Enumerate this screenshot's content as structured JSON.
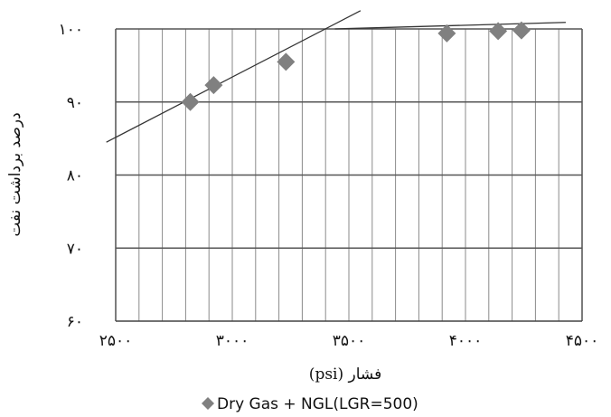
{
  "chart_data": {
    "type": "scatter",
    "xlabel": "فشار (psi)",
    "ylabel": "درصد برداشت نفت",
    "xlim": [
      2500,
      4500
    ],
    "ylim": [
      60,
      100
    ],
    "x_ticks": [
      2500,
      3000,
      3500,
      4000,
      4500
    ],
    "x_tick_labels": [
      "۲۵۰۰",
      "۳۰۰۰",
      "۳۵۰۰",
      "۴۰۰۰",
      "۴۵۰۰"
    ],
    "y_ticks": [
      60,
      70,
      80,
      90,
      100
    ],
    "y_tick_labels": [
      "۶۰",
      "۷۰",
      "۸۰",
      "۹۰",
      "۱۰۰"
    ],
    "grid": true,
    "legend_position": "bottom",
    "series": [
      {
        "name": "Dry Gas + NGL(LGR=500)",
        "marker": "diamond",
        "color": "#808080",
        "points": [
          {
            "x": 2820,
            "y": 90.0
          },
          {
            "x": 2920,
            "y": 92.3
          },
          {
            "x": 3230,
            "y": 95.5
          },
          {
            "x": 3920,
            "y": 99.4
          },
          {
            "x": 4140,
            "y": 99.7
          },
          {
            "x": 4240,
            "y": 99.8
          }
        ]
      }
    ],
    "trendlines": [
      {
        "x0": 2460,
        "y0": 84.5,
        "x1": 3550,
        "y1": 102.5
      },
      {
        "x0": 3440,
        "y0": 100.0,
        "x1": 4430,
        "y1": 100.9
      }
    ],
    "grid_step_x": 100,
    "grid_step_y": 10
  }
}
